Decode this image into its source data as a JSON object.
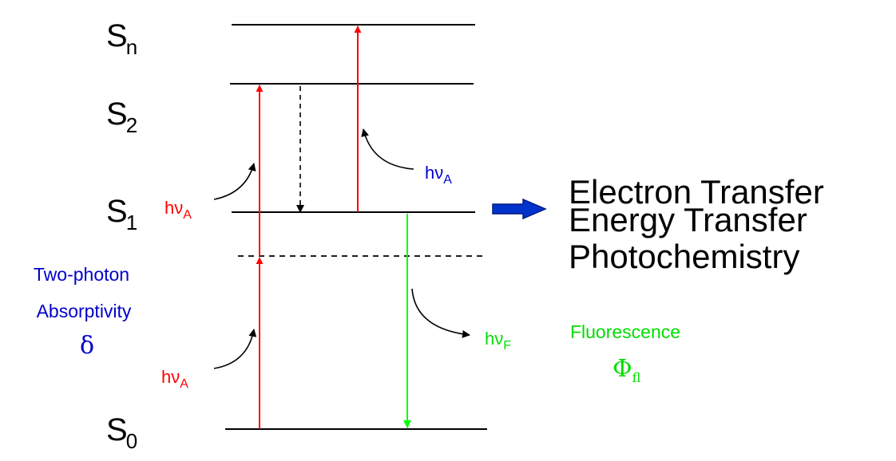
{
  "colors": {
    "level_line": "#000000",
    "absorption": "#ff0000",
    "fluorescence": "#00ff00",
    "label_blue": "#0000cc",
    "outcome_arrow": "#0033cc"
  },
  "levels": {
    "sn": {
      "letter": "S",
      "sub": "n"
    },
    "s2": {
      "letter": "S",
      "sub": "2"
    },
    "s1": {
      "letter": "S",
      "sub": "1"
    },
    "s0": {
      "letter": "S",
      "sub": "0"
    }
  },
  "photons": {
    "absorb_upper": {
      "main": "hν",
      "sub": "A"
    },
    "absorb_lower": {
      "main": "hν",
      "sub": "A"
    },
    "absorb_excited": {
      "main": "hν",
      "sub": "A"
    },
    "emission": {
      "main": "hν",
      "sub": "F"
    }
  },
  "two_photon": {
    "line1": "Two-photon",
    "line2": "Absorptivity",
    "symbol": "δ"
  },
  "fluorescence": {
    "label": "Fluorescence",
    "symbol": "Φ",
    "symbol_sub": "fl"
  },
  "outcomes": [
    "Electron Transfer",
    "Energy Transfer",
    "Photochemistry"
  ]
}
